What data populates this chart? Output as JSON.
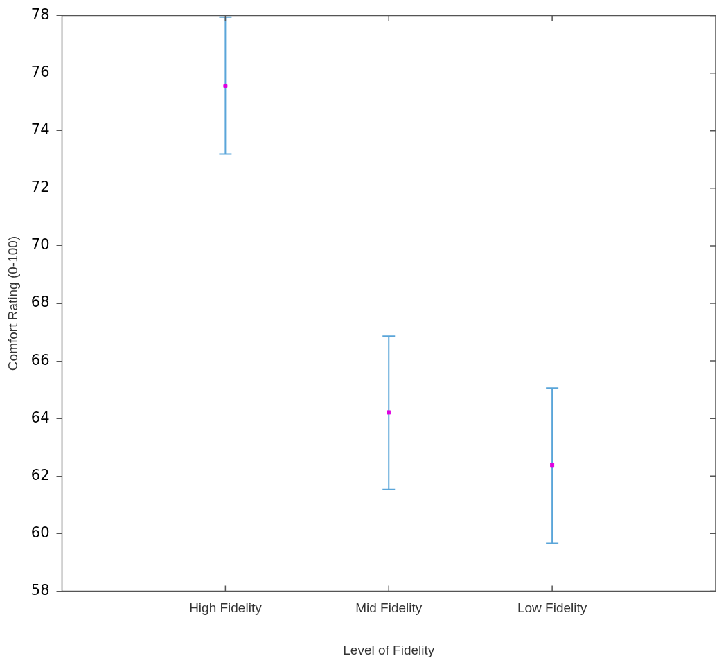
{
  "chart_data": {
    "type": "scatter",
    "xlabel": "Level of Fidelity",
    "ylabel": "Comfort Rating (0-100)",
    "categories": [
      "High Fidelity",
      "Mid Fidelity",
      "Low Fidelity"
    ],
    "values": [
      75.56,
      64.21,
      62.38
    ],
    "errors": [
      [
        73.19,
        77.95
      ],
      [
        61.53,
        66.86
      ],
      [
        59.66,
        65.06
      ]
    ],
    "color": "#e000e0",
    "marker": "square",
    "ylim": [
      58,
      78
    ],
    "yticks": [
      58,
      60,
      62,
      64,
      66,
      68,
      70,
      72,
      74,
      76,
      78
    ]
  }
}
